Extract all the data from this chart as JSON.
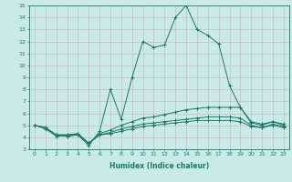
{
  "xlabel": "Humidex (Indice chaleur)",
  "bg_color": "#c8eae8",
  "grid_color": "#d4b8b8",
  "line_color": "#1a7a6a",
  "xlim": [
    -0.5,
    23.5
  ],
  "ylim": [
    3,
    15
  ],
  "xticks": [
    0,
    1,
    2,
    3,
    4,
    5,
    6,
    7,
    8,
    9,
    10,
    11,
    12,
    13,
    14,
    15,
    16,
    17,
    18,
    19,
    20,
    21,
    22,
    23
  ],
  "yticks": [
    3,
    4,
    5,
    6,
    7,
    8,
    9,
    10,
    11,
    12,
    13,
    14,
    15
  ],
  "lines": [
    {
      "x": [
        0,
        1,
        2,
        3,
        4,
        5,
        6,
        7,
        8,
        9,
        10,
        11,
        12,
        13,
        14,
        15,
        16,
        17,
        18,
        19,
        20,
        21,
        22,
        23
      ],
      "y": [
        5.0,
        4.7,
        4.1,
        4.1,
        4.2,
        3.3,
        4.5,
        8.0,
        5.5,
        9.0,
        12.0,
        11.5,
        11.7,
        14.0,
        15.0,
        13.0,
        12.5,
        11.8,
        8.3,
        6.5,
        5.2,
        5.0,
        5.3,
        5.0
      ]
    },
    {
      "x": [
        0,
        1,
        2,
        3,
        4,
        5,
        6,
        7,
        8,
        9,
        10,
        11,
        12,
        13,
        14,
        15,
        16,
        17,
        18,
        19,
        20,
        21,
        22,
        23
      ],
      "y": [
        5.0,
        4.8,
        4.2,
        4.1,
        4.2,
        3.5,
        4.3,
        4.6,
        5.0,
        5.3,
        5.6,
        5.7,
        5.9,
        6.1,
        6.3,
        6.4,
        6.5,
        6.5,
        6.5,
        6.5,
        5.3,
        5.1,
        5.3,
        5.1
      ]
    },
    {
      "x": [
        0,
        1,
        2,
        3,
        4,
        5,
        6,
        7,
        8,
        9,
        10,
        11,
        12,
        13,
        14,
        15,
        16,
        17,
        18,
        19,
        20,
        21,
        22,
        23
      ],
      "y": [
        5.0,
        4.8,
        4.2,
        4.2,
        4.3,
        3.5,
        4.2,
        4.4,
        4.7,
        4.9,
        5.1,
        5.2,
        5.3,
        5.4,
        5.5,
        5.6,
        5.7,
        5.7,
        5.7,
        5.6,
        5.0,
        4.8,
        5.1,
        4.9
      ]
    },
    {
      "x": [
        0,
        1,
        2,
        3,
        4,
        5,
        6,
        7,
        8,
        9,
        10,
        11,
        12,
        13,
        14,
        15,
        16,
        17,
        18,
        19,
        20,
        21,
        22,
        23
      ],
      "y": [
        5.0,
        4.8,
        4.2,
        4.2,
        4.3,
        3.5,
        4.2,
        4.3,
        4.5,
        4.7,
        4.9,
        5.0,
        5.1,
        5.2,
        5.3,
        5.4,
        5.4,
        5.4,
        5.4,
        5.3,
        4.9,
        4.8,
        5.0,
        4.8
      ]
    }
  ]
}
